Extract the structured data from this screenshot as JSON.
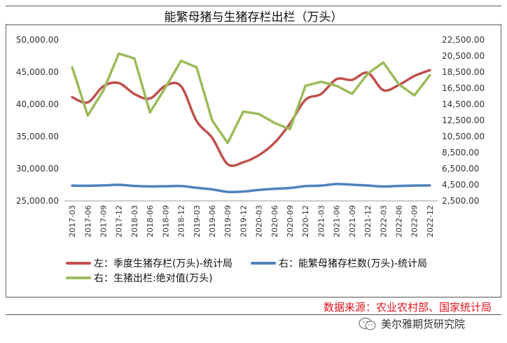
{
  "chart_data": {
    "type": "line",
    "title": "能繁母猪与生猪存栏出栏（万头）",
    "categories": [
      "2017-03",
      "2017-06",
      "2017-09",
      "2017-12",
      "2018-03",
      "2018-06",
      "2018-09",
      "2018-12",
      "2019-03",
      "2019-06",
      "2019-09",
      "2019-12",
      "2020-03",
      "2020-06",
      "2020-09",
      "2020-12",
      "2021-03",
      "2021-06",
      "2021-09",
      "2021-12",
      "2022-03",
      "2022-06",
      "2022-09",
      "2022-12"
    ],
    "left_axis": {
      "ylim": [
        25000,
        50000
      ],
      "ticks": [
        "25,000.00",
        "30,000.00",
        "35,000.00",
        "40,000.00",
        "45,000.00",
        "50,000.00"
      ]
    },
    "right_axis": {
      "ylim": [
        2500,
        22500
      ],
      "ticks": [
        "2,500.00",
        "4,500.00",
        "6,500.00",
        "8,500.00",
        "10,500.00",
        "12,500.00",
        "14,500.00",
        "16,500.00",
        "18,500.00",
        "20,500.00",
        "22,500.00"
      ]
    },
    "series": [
      {
        "name": "左：季度生猪存栏(万头)-统计局",
        "axis": "left",
        "color": "#c0504d",
        "values": [
          41100,
          40300,
          42800,
          43300,
          41600,
          40900,
          42900,
          42800,
          37400,
          34800,
          30700,
          31000,
          32100,
          34000,
          37000,
          40700,
          41600,
          43900,
          43800,
          44900,
          42200,
          43000,
          44400,
          45300
        ]
      },
      {
        "name": "右：能繁母猪存栏数(万头)-统计局",
        "axis": "right",
        "color": "#4f81bd",
        "values": [
          4400,
          4380,
          4420,
          4500,
          4360,
          4300,
          4320,
          4350,
          4130,
          3930,
          3620,
          3660,
          3860,
          4000,
          4110,
          4340,
          4400,
          4600,
          4510,
          4410,
          4290,
          4360,
          4400,
          4420
        ]
      },
      {
        "name": "右：生猪出栏:绝对值(万头)",
        "axis": "right",
        "color": "#9bbb59",
        "values": [
          19100,
          13100,
          16200,
          20800,
          20200,
          13500,
          16600,
          19900,
          19100,
          12500,
          9700,
          13600,
          13300,
          12200,
          11400,
          16800,
          17300,
          16800,
          15800,
          18300,
          19700,
          17000,
          15600,
          18100
        ]
      }
    ]
  },
  "footer": {
    "source": "数据来源：农业农村部、国家统计局",
    "watermark": "美尔雅期货研究院"
  }
}
